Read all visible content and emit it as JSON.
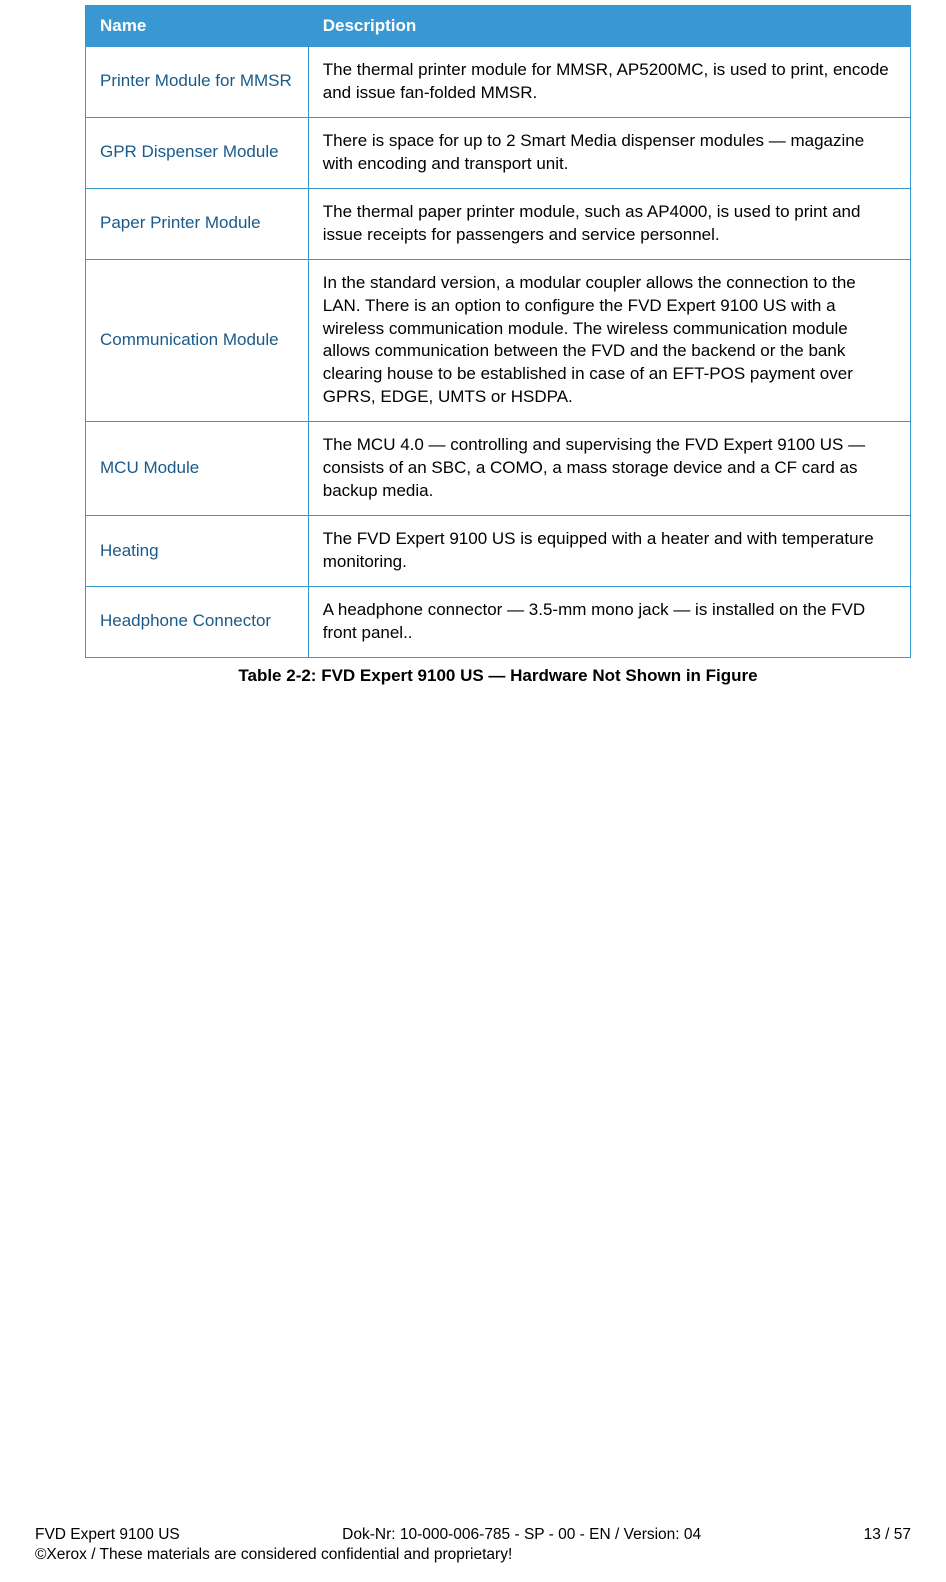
{
  "table": {
    "header_bg": "#3998d2",
    "header_fg": "#ffffff",
    "border_color": "#3998d2",
    "name_color": "#1a5a8a",
    "desc_color": "#000000",
    "columns": [
      "Name",
      "Description"
    ],
    "rows": [
      {
        "name": "Printer Module for MMSR",
        "desc": "The thermal printer module for MMSR, AP5200MC, is used to print, encode and issue fan-folded MMSR."
      },
      {
        "name": "GPR Dispenser Module",
        "desc": "There is space for up to 2 Smart Media dispenser modules — magazine with encoding and transport unit."
      },
      {
        "name": "Paper Printer Module",
        "desc": "The thermal paper printer module, such as AP4000, is used to print and issue receipts for passengers and service personnel."
      },
      {
        "name": "Communication Module",
        "desc": "In the standard version, a modular coupler allows the connection to the LAN. There is an option to configure the FVD Expert 9100 US with a wireless communication module. The wireless communication module allows communication between the FVD and the backend or the bank clearing house to be established in case of an EFT-POS payment over GPRS, EDGE, UMTS or HSDPA."
      },
      {
        "name": "MCU Module",
        "desc": "The MCU 4.0 — controlling and supervising the FVD Expert 9100 US — consists of an SBC, a COMO, a mass storage device and a CF card as backup media."
      },
      {
        "name": "Heating",
        "desc": "The FVD Expert 9100 US is equipped with a heater and with temperature monitoring."
      },
      {
        "name": "Headphone Connector",
        "desc": "A headphone connector — 3.5-mm mono jack — is installed on the FVD front panel.."
      }
    ]
  },
  "caption": "Table 2-2: FVD Expert 9100 US — Hardware Not Shown in Figure",
  "footer": {
    "product": "FVD Expert 9100 US",
    "docnum": "Dok-Nr: 10-000-006-785 - SP - 00 - EN / Version: 04",
    "page": "13 / 57",
    "confidential": "©Xerox / These materials are considered confidential and proprietary!"
  }
}
